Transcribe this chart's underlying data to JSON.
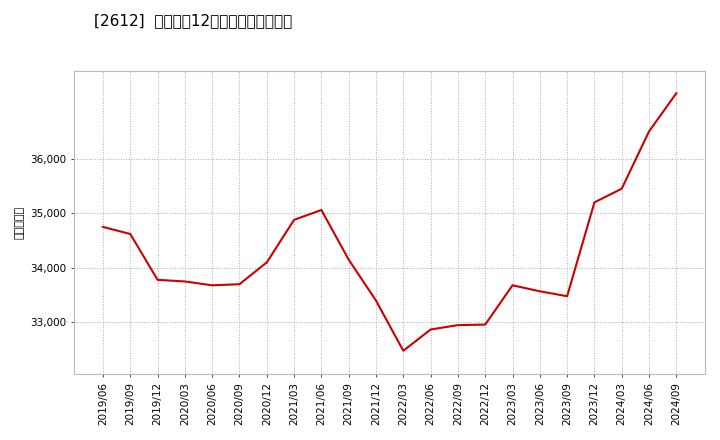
{
  "title": "[2612]  売上高の12か月移動合計の推移",
  "ylabel": "（百万円）",
  "line_color": "#cc0000",
  "bg_color": "#ffffff",
  "plot_bg_color": "#ffffff",
  "grid_color": "#aaaaaa",
  "x_labels": [
    "2019/06",
    "2019/09",
    "2019/12",
    "2020/03",
    "2020/06",
    "2020/09",
    "2020/12",
    "2021/03",
    "2021/06",
    "2021/09",
    "2021/12",
    "2022/03",
    "2022/06",
    "2022/09",
    "2022/12",
    "2023/03",
    "2023/06",
    "2023/09",
    "2023/12",
    "2024/03",
    "2024/06",
    "2024/09"
  ],
  "values": [
    34750,
    34620,
    33780,
    33750,
    33680,
    33700,
    34100,
    34880,
    35060,
    34150,
    33400,
    32480,
    32870,
    32950,
    32960,
    33680,
    33570,
    33480,
    35200,
    35450,
    36500,
    37200
  ],
  "ylim_min": 32050,
  "ylim_max": 37600,
  "yticks": [
    33000,
    34000,
    35000,
    36000
  ],
  "title_fontsize": 11,
  "ylabel_fontsize": 8,
  "tick_fontsize": 7.5
}
